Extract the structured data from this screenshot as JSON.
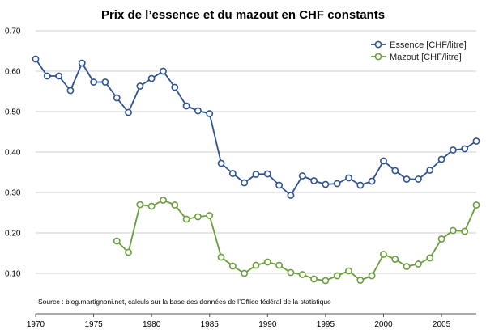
{
  "chart_data": {
    "type": "line",
    "title": "Prix de l’essence et du mazout en CHF constants",
    "xlabel": "",
    "ylabel": "",
    "xlim": [
      1970,
      2008
    ],
    "ylim": [
      0,
      0.7
    ],
    "x_ticks": [
      "1970",
      "1975",
      "1980",
      "1985",
      "1990",
      "1995",
      "2000",
      "2005"
    ],
    "y_ticks": [
      "0.10",
      "0.20",
      "0.30",
      "0.40",
      "0.50",
      "0.60",
      "0.70"
    ],
    "grid": "horizontal",
    "legend_position": "top-right",
    "source": "Source : blog.martignoni.net, calculs sur la base des données de l’Office fédéral de la statistique",
    "series": [
      {
        "name": "Essence [CHF/litre]",
        "color": "#2d5390",
        "x": [
          1970,
          1971,
          1972,
          1973,
          1974,
          1975,
          1976,
          1977,
          1978,
          1979,
          1980,
          1981,
          1982,
          1983,
          1984,
          1985,
          1986,
          1987,
          1988,
          1989,
          1990,
          1991,
          1992,
          1993,
          1994,
          1995,
          1996,
          1997,
          1998,
          1999,
          2000,
          2001,
          2002,
          2003,
          2004,
          2005,
          2006,
          2007,
          2008
        ],
        "values": [
          0.63,
          0.588,
          0.588,
          0.552,
          0.62,
          0.573,
          0.573,
          0.534,
          0.498,
          0.563,
          0.582,
          0.6,
          0.56,
          0.514,
          0.502,
          0.495,
          0.372,
          0.347,
          0.324,
          0.345,
          0.346,
          0.318,
          0.293,
          0.341,
          0.329,
          0.32,
          0.322,
          0.336,
          0.318,
          0.328,
          0.378,
          0.354,
          0.333,
          0.333,
          0.355,
          0.382,
          0.405,
          0.408,
          0.427
        ]
      },
      {
        "name": "Mazout [CHF/litre]",
        "color": "#6a9e3c",
        "x": [
          1977,
          1978,
          1979,
          1980,
          1981,
          1982,
          1983,
          1984,
          1985,
          1986,
          1987,
          1988,
          1989,
          1990,
          1991,
          1992,
          1993,
          1994,
          1995,
          1996,
          1997,
          1998,
          1999,
          2000,
          2001,
          2002,
          2003,
          2004,
          2005,
          2006,
          2007,
          2008
        ],
        "values": [
          0.18,
          0.152,
          0.27,
          0.266,
          0.281,
          0.269,
          0.234,
          0.24,
          0.243,
          0.14,
          0.118,
          0.1,
          0.12,
          0.128,
          0.12,
          0.102,
          0.097,
          0.086,
          0.082,
          0.094,
          0.106,
          0.083,
          0.094,
          0.147,
          0.135,
          0.117,
          0.123,
          0.138,
          0.185,
          0.206,
          0.204,
          0.269
        ]
      }
    ]
  }
}
